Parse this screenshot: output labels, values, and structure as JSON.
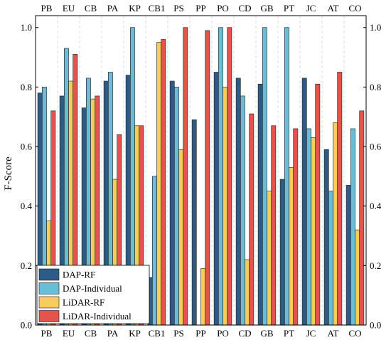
{
  "chart_data": {
    "type": "bar",
    "ylabel": "F-Score",
    "xlabel": "",
    "title": "",
    "ylim": [
      0,
      1.04
    ],
    "yticks": [
      0.0,
      0.2,
      0.4,
      0.6,
      0.8,
      1.0
    ],
    "ytick_labels": [
      "0.0",
      "0.2",
      "0.4",
      "0.6",
      "0.8",
      "1.0"
    ],
    "categories": [
      "PB",
      "EU",
      "CB",
      "PA",
      "KP",
      "CB1",
      "PS",
      "PP",
      "PO",
      "CD",
      "GB",
      "PT",
      "JC",
      "AT",
      "CO"
    ],
    "grid": "vertical dashed separators between category groups",
    "legend_position": "bottom-left",
    "series": [
      {
        "name": "DAP-RF",
        "color": "#2b5b86",
        "values": [
          0.78,
          0.77,
          0.73,
          0.82,
          0.84,
          0.16,
          0.82,
          0.69,
          0.85,
          0.83,
          0.81,
          0.49,
          0.83,
          0.59,
          0.47
        ]
      },
      {
        "name": "DAP-Individual",
        "color": "#69bdd6",
        "values": [
          0.8,
          0.93,
          0.83,
          0.85,
          1.0,
          0.5,
          0.8,
          0.0,
          1.0,
          0.77,
          1.0,
          1.0,
          0.66,
          0.45,
          0.66
        ]
      },
      {
        "name": "LiDAR-RF",
        "color": "#f6cd5a",
        "values": [
          0.35,
          0.82,
          0.76,
          0.49,
          0.67,
          0.95,
          0.59,
          0.19,
          0.8,
          0.22,
          0.45,
          0.53,
          0.63,
          0.68,
          0.32
        ]
      },
      {
        "name": "LiDAR-Individual",
        "color": "#e4544e",
        "values": [
          0.72,
          0.91,
          0.77,
          0.64,
          0.67,
          0.96,
          1.0,
          0.99,
          1.0,
          0.71,
          0.67,
          0.66,
          0.81,
          0.85,
          0.72
        ]
      }
    ]
  }
}
